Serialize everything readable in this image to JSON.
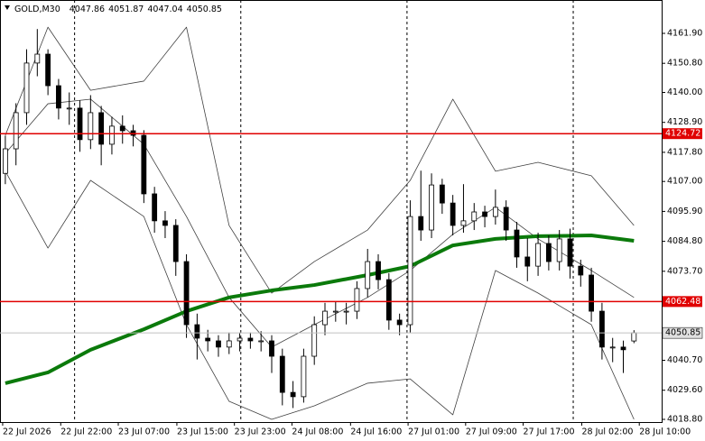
{
  "chart_data": {
    "type": "candlestick",
    "title": "GOLD,M30",
    "open": [
      4110.0,
      4119.1,
      4132.5,
      4150.9,
      4154.2,
      4142.5,
      4134.2,
      4134.2,
      4122.5,
      4132.5,
      4120.8,
      4127.5,
      4125.8,
      4124.1,
      4102.4,
      4092.4,
      4090.7,
      4077.3,
      4053.9,
      4048.9,
      4047.9,
      4045.6,
      4047.9,
      4048.9,
      4047.9,
      4047.9,
      4042.2,
      4028.8,
      4027.2,
      4042.2,
      4053.9,
      4058.9,
      4058.9,
      4058.9,
      4067.3,
      4077.3,
      4070.6,
      4055.6,
      4053.9,
      4094.0,
      4089.0,
      4105.7,
      4099.0,
      4090.7,
      4092.4,
      4095.7,
      4094.0,
      4097.4,
      4089.0,
      4079.0,
      4075.6,
      4084.0,
      4077.3,
      4085.7,
      4075.6,
      4072.3,
      4058.9,
      4045.6,
      4045.6,
      4047.86
    ],
    "high": [
      4124.0,
      4136.0,
      4156.0,
      4163.5,
      4156.0,
      4145.0,
      4140.0,
      4137.0,
      4139.0,
      4135.0,
      4131.0,
      4131.5,
      4128.0,
      4126.0,
      4105.0,
      4096.0,
      4093.0,
      4080.0,
      4058.0,
      4052.0,
      4050.0,
      4051.0,
      4051.0,
      4051.0,
      4051.5,
      4050.0,
      4045.0,
      4033.0,
      4045.0,
      4057.0,
      4062.0,
      4062.5,
      4062.0,
      4070.0,
      4082.0,
      4080.0,
      4073.0,
      4058.0,
      4100.0,
      4111.0,
      4110.0,
      4108.0,
      4102.0,
      4106.0,
      4099.0,
      4098.0,
      4104.0,
      4100.0,
      4092.0,
      4086.0,
      4088.0,
      4087.0,
      4089.0,
      4089.5,
      4078.0,
      4075.0,
      4062.0,
      4049.0,
      4048.0,
      4051.87
    ],
    "low": [
      4106.0,
      4113.0,
      4128.0,
      4146.0,
      4139.0,
      4130.0,
      4128.0,
      4118.0,
      4119.0,
      4113.0,
      4117.0,
      4121.0,
      4120.0,
      4099.0,
      4088.0,
      4086.0,
      4072.0,
      4049.0,
      4041.0,
      4044.0,
      4042.0,
      4043.0,
      4044.0,
      4045.0,
      4044.0,
      4036.0,
      4024.0,
      4023.0,
      4025.0,
      4039.0,
      4050.0,
      4055.0,
      4054.0,
      4056.0,
      4064.0,
      4067.0,
      4052.0,
      4050.0,
      4051.0,
      4085.0,
      4086.0,
      4095.0,
      4087.0,
      4088.0,
      4089.0,
      4090.0,
      4091.0,
      4085.0,
      4075.0,
      4070.0,
      4072.0,
      4074.0,
      4074.0,
      4071.0,
      4068.0,
      4055.0,
      4041.0,
      4040.0,
      4036.0,
      4047.04
    ],
    "close": [
      4119.1,
      4132.5,
      4150.9,
      4154.2,
      4142.5,
      4134.2,
      4134.2,
      4122.5,
      4132.5,
      4120.8,
      4127.5,
      4125.8,
      4124.1,
      4102.4,
      4092.4,
      4090.7,
      4077.3,
      4053.9,
      4048.9,
      4047.9,
      4045.6,
      4047.9,
      4048.9,
      4047.9,
      4047.9,
      4042.2,
      4028.8,
      4027.2,
      4042.2,
      4053.9,
      4058.9,
      4058.9,
      4058.9,
      4067.3,
      4077.3,
      4070.6,
      4055.6,
      4053.9,
      4094.0,
      4089.0,
      4105.7,
      4099.0,
      4090.7,
      4092.4,
      4095.7,
      4094.0,
      4097.4,
      4089.0,
      4079.0,
      4075.6,
      4084.0,
      4077.3,
      4085.7,
      4075.6,
      4072.3,
      4058.9,
      4045.6,
      4045.6,
      4044.6,
      4050.85
    ],
    "indicator_x": [
      0,
      4,
      8,
      13,
      17,
      21,
      25,
      29,
      34,
      38,
      42,
      46,
      50,
      55,
      59
    ],
    "band_upper": [
      4124.1,
      4164.2,
      4140.8,
      4144.2,
      4164.2,
      4090.7,
      4065.6,
      4077.3,
      4089.0,
      4107.4,
      4137.5,
      4110.8,
      4114.1,
      4109.1,
      4090.7
    ],
    "band_middle": [
      4117.4,
      4135.8,
      4137.5,
      4120.8,
      4094.0,
      4064.0,
      4045.6,
      4053.9,
      4064.0,
      4074.0,
      4087.4,
      4097.4,
      4085.7,
      4074.0,
      4064.0
    ],
    "band_lower": [
      4110.8,
      4082.3,
      4107.4,
      4094.0,
      4053.9,
      4025.5,
      4018.8,
      4023.8,
      4032.2,
      4033.8,
      4020.5,
      4074.0,
      4065.6,
      4053.9,
      4018.8
    ],
    "band_color": "#404040",
    "ma": [
      4032.2,
      4036.2,
      4044.6,
      4052.2,
      4058.9,
      4064.0,
      4066.6,
      4068.6,
      4072.3,
      4075.6,
      4083.3,
      4085.7,
      4086.7,
      4087.0,
      4085.0
    ],
    "ma_color": "#0b7a0b",
    "levels": [
      4124.72,
      4062.48
    ],
    "level_color": "#e00000",
    "separators": [
      6.5,
      22.1,
      37.7,
      53.3
    ],
    "xlim": [
      -0.5,
      61.6
    ],
    "xticks": [
      {
        "value": -0.25,
        "label": "22 Jul 2026"
      },
      {
        "value": 5.2,
        "label": "22 Jul 22:00"
      },
      {
        "value": 10.6,
        "label": "23 Jul 07:00"
      },
      {
        "value": 16.1,
        "label": "23 Jul 15:00"
      },
      {
        "value": 21.5,
        "label": "23 Jul 23:00"
      },
      {
        "value": 26.9,
        "label": "24 Jul 08:00"
      },
      {
        "value": 32.4,
        "label": "24 Jul 16:00"
      },
      {
        "value": 37.8,
        "label": "27 Jul 01:00"
      },
      {
        "value": 43.2,
        "label": "27 Jul 09:00"
      },
      {
        "value": 48.6,
        "label": "27 Jul 17:00"
      },
      {
        "value": 54.1,
        "label": "28 Jul 02:00"
      },
      {
        "value": 59.5,
        "label": "28 Jul 10:00"
      }
    ],
    "ylim": [
      4017.8,
      4174.27
    ],
    "yticks": [
      {
        "value": 4161.9,
        "label": "4161.90"
      },
      {
        "value": 4150.8,
        "label": "4150.80"
      },
      {
        "value": 4140.0,
        "label": "4140.00"
      },
      {
        "value": 4128.9,
        "label": "4128.90"
      },
      {
        "value": 4117.8,
        "label": "4117.80"
      },
      {
        "value": 4107.0,
        "label": "4107.00"
      },
      {
        "value": 4095.9,
        "label": "4095.90"
      },
      {
        "value": 4084.8,
        "label": "4084.80"
      },
      {
        "value": 4073.7,
        "label": "4073.70"
      },
      {
        "value": 4040.7,
        "label": "4040.70"
      },
      {
        "value": 4029.6,
        "label": "4029.60"
      },
      {
        "value": 4018.8,
        "label": "4018.80"
      }
    ]
  }
}
